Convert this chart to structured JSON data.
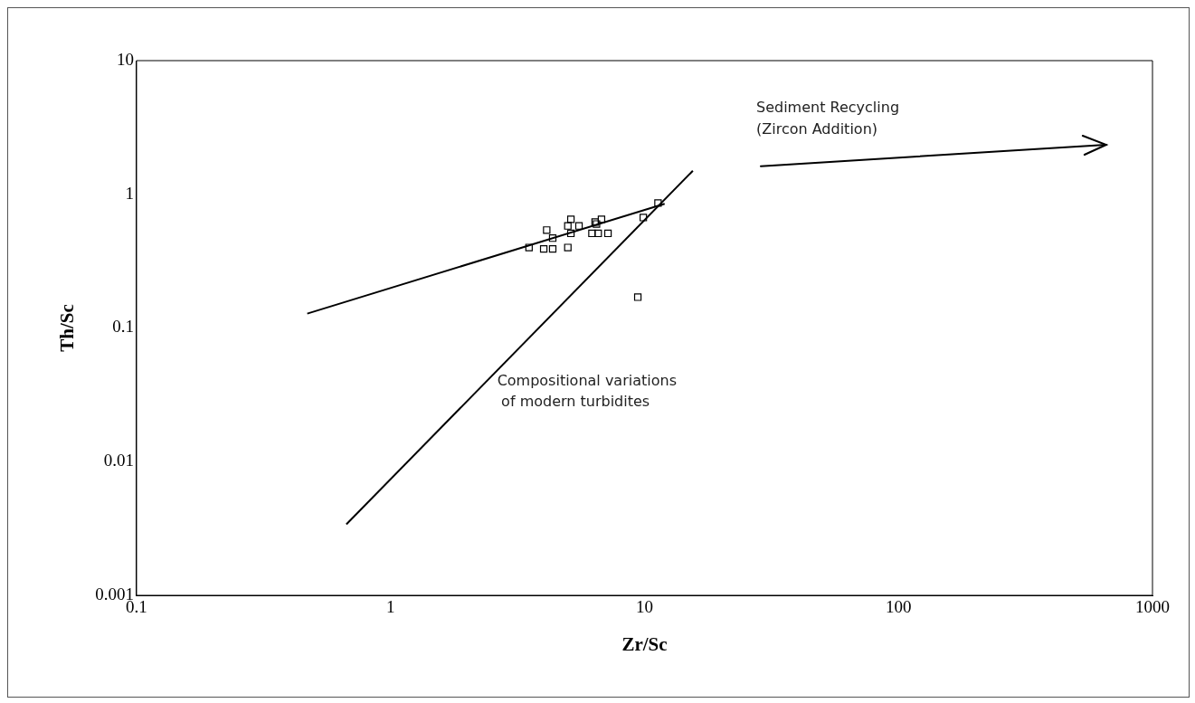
{
  "chart_data": {
    "type": "scatter",
    "xlabel": "Zr/Sc",
    "ylabel": "Th/Sc",
    "log": "xy",
    "grid": false,
    "legend": false,
    "xlim": [
      0.1,
      1000
    ],
    "xticks": [
      0.1,
      1,
      10,
      100,
      1000
    ],
    "ylim": [
      0.001,
      10
    ],
    "yticks": [
      0.001,
      0.01,
      0.1,
      1,
      10
    ],
    "annotations": [
      "Sediment Recycling",
      "(Zircon Addition)",
      "Compositional variations",
      "of modern turbidites"
    ],
    "series": [
      {
        "marker": "square",
        "color": "#000000",
        "x": [
          3.51,
          4.12,
          4.01,
          4.35,
          4.99,
          5.13,
          4.99,
          5.13,
          5.52,
          4.35,
          6.21,
          6.39,
          6.57,
          6.77,
          7.18,
          6.47,
          9.89,
          11.3,
          9.41
        ],
        "values": [
          0.4,
          0.54,
          0.39,
          0.39,
          0.4,
          0.65,
          0.58,
          0.51,
          0.58,
          0.47,
          0.51,
          0.62,
          0.51,
          0.65,
          0.51,
          0.6,
          0.67,
          0.86,
          0.17
        ]
      },
      {
        "type": "line",
        "marker": "none",
        "color": "#000000",
        "x": [
          0.47,
          12
        ],
        "values": [
          0.128,
          0.85
        ]
      },
      {
        "type": "line",
        "marker": "none",
        "color": "#000000",
        "x": [
          0.67,
          15.5
        ],
        "values": [
          0.0034,
          1.5
        ]
      }
    ]
  }
}
